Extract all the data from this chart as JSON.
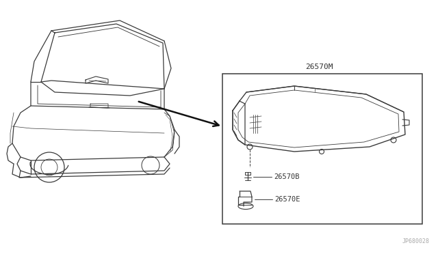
{
  "background_color": "#ffffff",
  "watermark": "JP680028",
  "part_label_main": "26570M",
  "part_label_b": "26570B",
  "part_label_e": "26570E",
  "line_color": "#3a3a3a",
  "box_color": "#3a3a3a",
  "arrow_color": "#111111",
  "figsize": [
    6.4,
    3.72
  ],
  "dpi": 100
}
